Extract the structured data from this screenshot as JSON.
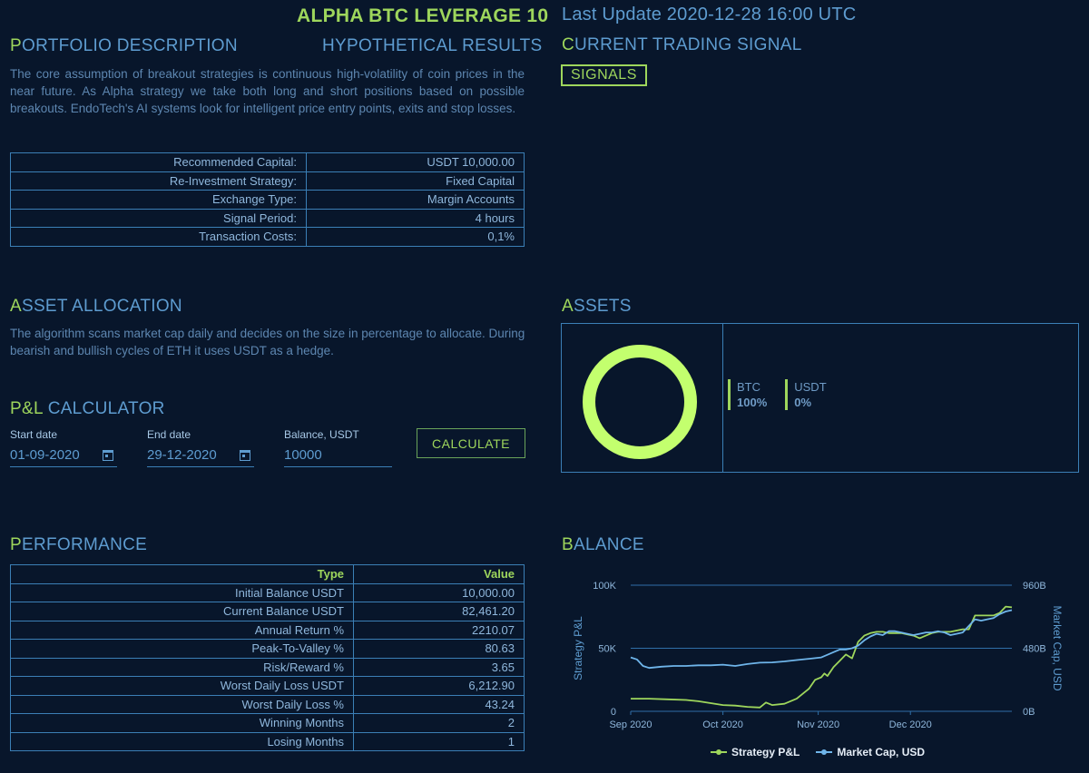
{
  "header": {
    "strategy_title": "ALPHA BTC LEVERAGE 10",
    "last_update": "Last Update 2020-12-28 16:00 UTC"
  },
  "portfolio": {
    "heading_first": "P",
    "heading_rest": "ORTFOLIO DESCRIPTION",
    "hypothetical": "HYPOTHETICAL RESULTS",
    "description": "The core assumption of breakout strategies is continuous high-volatility of coin prices in the near future. As Alpha strategy we take both long and short positions based on possible breakouts. EndoTech's AI systems look for intelligent price entry points, exits and stop losses.",
    "rows": [
      {
        "label": "Recommended Capital:",
        "value": "USDT 10,000.00"
      },
      {
        "label": "Re-Investment Strategy:",
        "value": "Fixed Capital"
      },
      {
        "label": "Exchange Type:",
        "value": "Margin Accounts"
      },
      {
        "label": "Signal Period:",
        "value": "4 hours"
      },
      {
        "label": "Transaction Costs:",
        "value": "0,1%"
      }
    ]
  },
  "signal": {
    "heading_first": "C",
    "heading_rest": "URRENT TRADING SIGNAL",
    "button": "SIGNALS"
  },
  "allocation": {
    "heading_first": "A",
    "heading_rest": "SSET ALLOCATION",
    "description": "The algorithm scans market cap daily and decides on the size in percentage to allocate. During bearish and bullish cycles of ETH it uses USDT as a hedge."
  },
  "calculator": {
    "heading_first": "P&L",
    "heading_rest": " CALCULATOR",
    "start_label": "Start date",
    "start_value": "01-09-2020",
    "end_label": "End date",
    "end_value": "29-12-2020",
    "balance_label": "Balance, USDT",
    "balance_value": "10000",
    "button": "CALCULATE"
  },
  "assets": {
    "heading_first": "A",
    "heading_rest": "SSETS",
    "items": [
      {
        "name": "BTC",
        "pct": "100%",
        "share": 1.0
      },
      {
        "name": "USDT",
        "pct": "0%",
        "share": 0.0
      }
    ],
    "ring_color": "#c3ff6e"
  },
  "performance": {
    "heading_first": "P",
    "heading_rest": "ERFORMANCE",
    "col_type": "Type",
    "col_value": "Value",
    "rows": [
      {
        "label": "Initial Balance USDT",
        "value": "10,000.00"
      },
      {
        "label": "Current Balance USDT",
        "value": "82,461.20"
      },
      {
        "label": "Annual Return %",
        "value": "2210.07"
      },
      {
        "label": "Peak-To-Valley %",
        "value": "80.63"
      },
      {
        "label": "Risk/Reward %",
        "value": "3.65"
      },
      {
        "label": "Worst Daily Loss USDT",
        "value": "6,212.90"
      },
      {
        "label": "Worst Daily Loss %",
        "value": "43.24"
      },
      {
        "label": "Winning Months",
        "value": "2"
      },
      {
        "label": "Losing Months",
        "value": "1"
      }
    ]
  },
  "balance": {
    "heading_first": "B",
    "heading_rest": "ALANCE"
  },
  "chart_data": {
    "type": "line",
    "title": "BALANCE",
    "xlabel": "",
    "ylabel": "Strategy P&L",
    "ylabel_right": "Market Cap, USD",
    "x_ticks": [
      "Sep 2020",
      "Oct 2020",
      "Nov 2020",
      "Dec 2020"
    ],
    "y_ticks_left": [
      "0",
      "50K",
      "100K"
    ],
    "y_ticks_right": [
      "0B",
      "480B",
      "960B"
    ],
    "ylim_left": [
      0,
      100000
    ],
    "ylim_right": [
      0,
      960
    ],
    "grid": true,
    "legend_position": "bottom",
    "colors": {
      "pnl": "#9ed65c",
      "mcap": "#6fb5ea"
    },
    "series": [
      {
        "name": "Strategy P&L",
        "axis": "left",
        "x_day": [
          0,
          6,
          12,
          18,
          22,
          26,
          30,
          34,
          38,
          42,
          44,
          46,
          50,
          54,
          58,
          60,
          62,
          63,
          64,
          66,
          68,
          70,
          72,
          74,
          76,
          78,
          80,
          82,
          84,
          86,
          88,
          90,
          92,
          94,
          96,
          98,
          100,
          102,
          104,
          106,
          108,
          110,
          112,
          114,
          116,
          118,
          120,
          122,
          124
        ],
        "values": [
          10000,
          10000,
          9500,
          9000,
          8000,
          6500,
          5000,
          4500,
          3500,
          3000,
          7000,
          5000,
          6000,
          10000,
          18000,
          25000,
          27000,
          30000,
          28000,
          35000,
          40000,
          45000,
          42000,
          55000,
          60000,
          62000,
          63000,
          63000,
          62000,
          62000,
          62000,
          61000,
          60000,
          58000,
          60000,
          62000,
          63000,
          63000,
          63000,
          64000,
          65000,
          65000,
          76000,
          76000,
          76000,
          76000,
          78000,
          83000,
          82461
        ]
      },
      {
        "name": "Market Cap, USD",
        "axis": "right",
        "x_day": [
          0,
          2,
          4,
          6,
          10,
          14,
          18,
          22,
          26,
          30,
          34,
          38,
          42,
          46,
          50,
          54,
          58,
          62,
          64,
          66,
          68,
          70,
          72,
          74,
          76,
          78,
          80,
          82,
          84,
          86,
          88,
          90,
          92,
          94,
          96,
          98,
          100,
          102,
          104,
          106,
          108,
          110,
          112,
          114,
          116,
          118,
          120,
          122,
          124
        ],
        "values": [
          410,
          395,
          345,
          330,
          340,
          345,
          345,
          350,
          350,
          355,
          345,
          360,
          370,
          372,
          380,
          390,
          400,
          410,
          430,
          450,
          470,
          470,
          480,
          500,
          540,
          570,
          590,
          580,
          610,
          610,
          600,
          590,
          580,
          590,
          600,
          600,
          610,
          600,
          580,
          590,
          600,
          650,
          700,
          690,
          700,
          710,
          740,
          760,
          770
        ]
      }
    ]
  }
}
